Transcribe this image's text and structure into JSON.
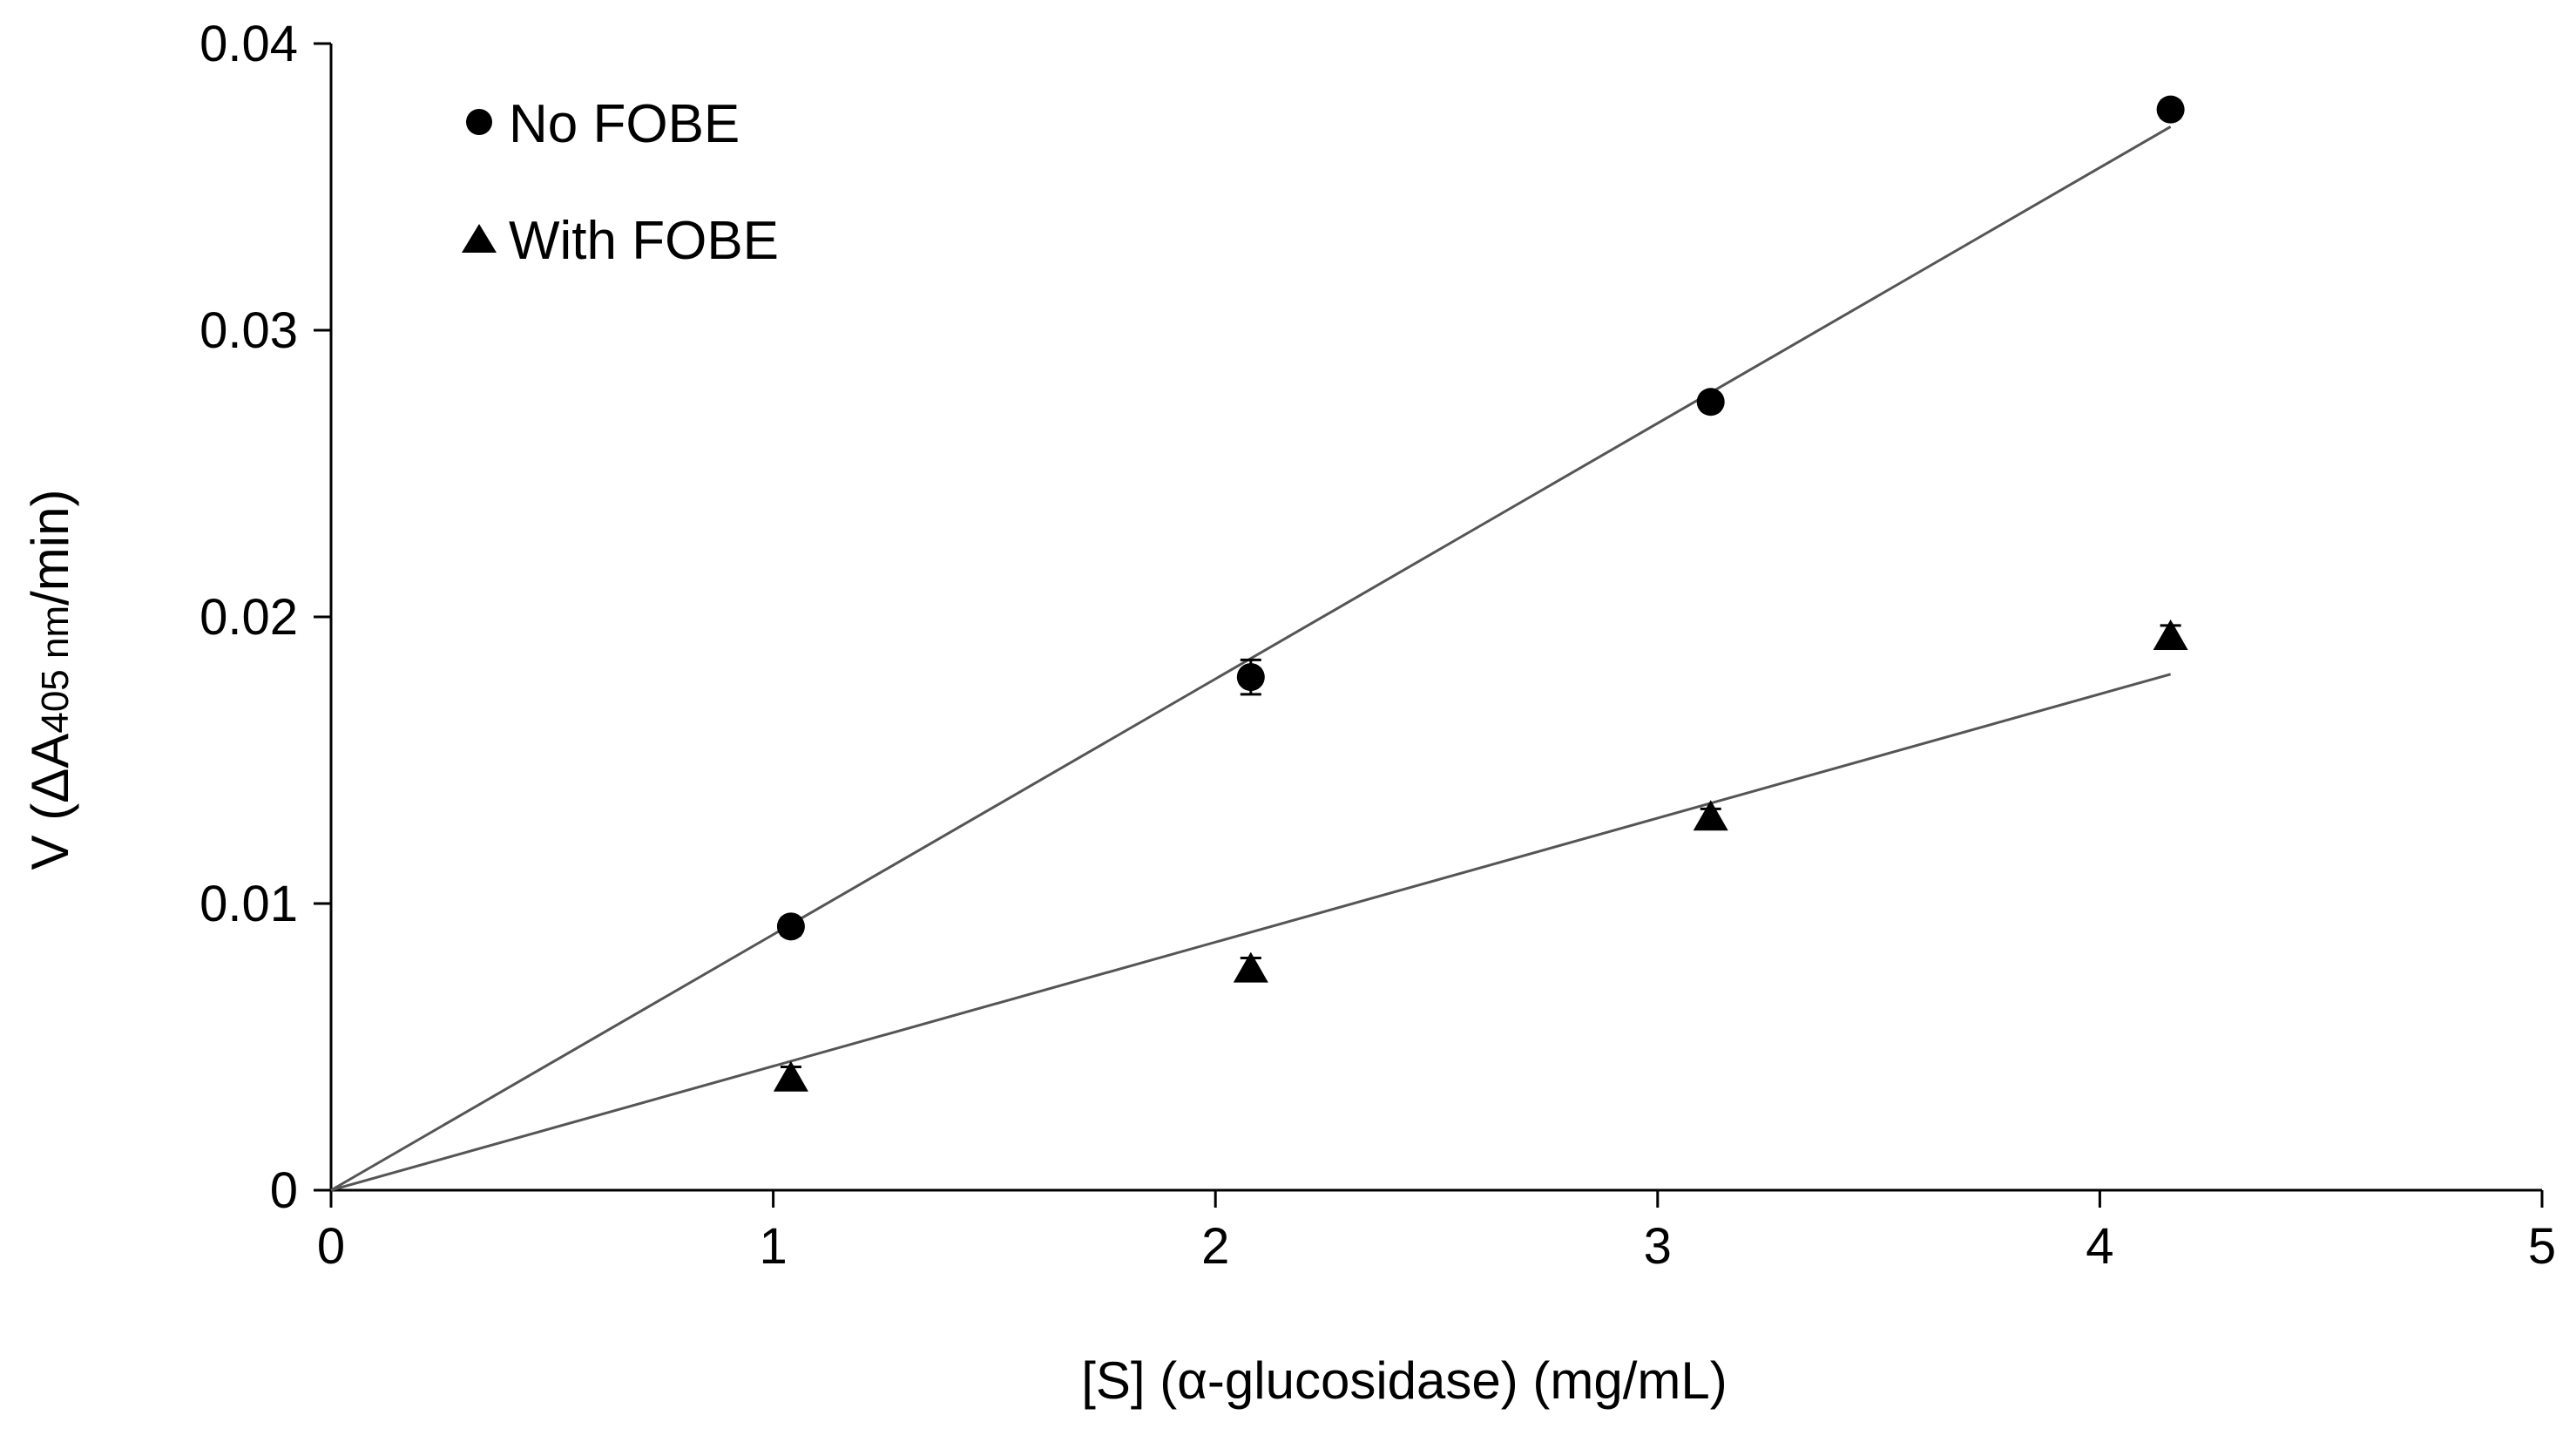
{
  "chart_data": {
    "type": "scatter",
    "xlabel": "[S] (α-glucosidase) (mg/mL)",
    "ylabel": {
      "prefix": "V (ΔA",
      "subscript": "405 nm",
      "suffix": "/min)"
    },
    "xlim": [
      0,
      5
    ],
    "ylim": [
      0,
      0.04
    ],
    "x_ticks": [
      0,
      1,
      2,
      3,
      4,
      5
    ],
    "y_ticks": [
      0,
      0.01,
      0.02,
      0.03,
      0.04
    ],
    "x_tick_labels": [
      "0",
      "1",
      "2",
      "3",
      "4",
      "5"
    ],
    "y_tick_labels": [
      "0",
      "0.01",
      "0.02",
      "0.03",
      "0.04"
    ],
    "grid": false,
    "legend_position": "top-left",
    "series": [
      {
        "name": "No FOBE",
        "marker": "circle",
        "color": "#000000",
        "x": [
          1.04,
          2.08,
          3.12,
          4.16
        ],
        "y": [
          0.0092,
          0.0179,
          0.0275,
          0.0377
        ],
        "error": [
          0.0003,
          0.0006,
          0.0002,
          0.0003
        ],
        "trendline": {
          "x": [
            0,
            4.16
          ],
          "y": [
            0,
            0.0371
          ]
        }
      },
      {
        "name": "With FOBE",
        "marker": "triangle",
        "color": "#000000",
        "x": [
          1.04,
          2.08,
          3.12,
          4.16
        ],
        "y": [
          0.0039,
          0.0077,
          0.013,
          0.0193
        ],
        "error": [
          0.0004,
          0.0004,
          0.0003,
          0.0004
        ],
        "trendline": {
          "x": [
            0,
            4.16
          ],
          "y": [
            0,
            0.018
          ]
        }
      }
    ],
    "trendline_color": "#555555"
  }
}
